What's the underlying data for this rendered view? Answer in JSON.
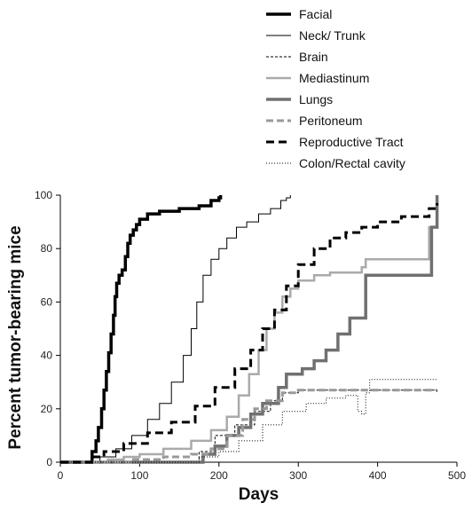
{
  "chart_data": {
    "type": "line",
    "title": "",
    "xlabel": "Days",
    "ylabel": "Percent tumor-bearing mice",
    "xlim": [
      0,
      500
    ],
    "ylim": [
      0,
      100
    ],
    "xticks": [
      0,
      100,
      200,
      300,
      400,
      500
    ],
    "yticks": [
      0,
      20,
      40,
      60,
      80,
      100
    ],
    "grid": false,
    "legend_position": "top",
    "series": [
      {
        "name": "Facial",
        "style": {
          "color": "#000000",
          "width": 3.5,
          "dash": ""
        },
        "points": [
          [
            0,
            0
          ],
          [
            38,
            0
          ],
          [
            40,
            4
          ],
          [
            45,
            8
          ],
          [
            48,
            13
          ],
          [
            52,
            20
          ],
          [
            55,
            27
          ],
          [
            58,
            34
          ],
          [
            61,
            41
          ],
          [
            64,
            48
          ],
          [
            67,
            55
          ],
          [
            69,
            62
          ],
          [
            71,
            67
          ],
          [
            74,
            70
          ],
          [
            78,
            72
          ],
          [
            82,
            77
          ],
          [
            85,
            82
          ],
          [
            88,
            85
          ],
          [
            92,
            87
          ],
          [
            96,
            89
          ],
          [
            100,
            91
          ],
          [
            110,
            93
          ],
          [
            125,
            94
          ],
          [
            140,
            94
          ],
          [
            150,
            95
          ],
          [
            175,
            96
          ],
          [
            190,
            98
          ],
          [
            200,
            99
          ],
          [
            202,
            100
          ]
        ]
      },
      {
        "name": "Neck/ Trunk",
        "style": {
          "color": "#000000",
          "width": 1,
          "dash": ""
        },
        "points": [
          [
            0,
            0
          ],
          [
            45,
            0
          ],
          [
            50,
            2
          ],
          [
            70,
            5
          ],
          [
            90,
            10
          ],
          [
            110,
            16
          ],
          [
            125,
            22
          ],
          [
            140,
            30
          ],
          [
            155,
            40
          ],
          [
            165,
            50
          ],
          [
            172,
            60
          ],
          [
            180,
            70
          ],
          [
            190,
            76
          ],
          [
            200,
            80
          ],
          [
            210,
            84
          ],
          [
            222,
            88
          ],
          [
            235,
            90
          ],
          [
            250,
            93
          ],
          [
            265,
            95
          ],
          [
            278,
            98
          ],
          [
            285,
            99
          ],
          [
            290,
            100
          ]
        ]
      },
      {
        "name": "Brain",
        "style": {
          "color": "#000000",
          "width": 1,
          "dash": "3,2"
        },
        "points": [
          [
            0,
            0
          ],
          [
            160,
            0
          ],
          [
            175,
            4
          ],
          [
            195,
            10
          ],
          [
            220,
            14
          ],
          [
            245,
            19
          ],
          [
            265,
            23
          ],
          [
            280,
            26
          ],
          [
            300,
            27
          ],
          [
            350,
            27
          ],
          [
            475,
            26
          ]
        ]
      },
      {
        "name": "Mediastinum",
        "style": {
          "color": "#aaaaaa",
          "width": 2.5,
          "dash": ""
        },
        "points": [
          [
            0,
            0
          ],
          [
            50,
            0
          ],
          [
            60,
            1
          ],
          [
            80,
            2
          ],
          [
            100,
            3
          ],
          [
            130,
            5
          ],
          [
            165,
            8
          ],
          [
            190,
            12
          ],
          [
            210,
            17
          ],
          [
            225,
            25
          ],
          [
            238,
            33
          ],
          [
            250,
            42
          ],
          [
            260,
            50
          ],
          [
            270,
            56
          ],
          [
            280,
            62
          ],
          [
            290,
            65
          ],
          [
            300,
            68
          ],
          [
            320,
            70
          ],
          [
            340,
            71
          ],
          [
            380,
            73
          ],
          [
            385,
            76
          ],
          [
            460,
            76
          ],
          [
            465,
            88
          ],
          [
            475,
            90
          ]
        ]
      },
      {
        "name": "Lungs",
        "style": {
          "color": "#707070",
          "width": 3.5,
          "dash": ""
        },
        "points": [
          [
            0,
            0
          ],
          [
            175,
            0
          ],
          [
            180,
            3
          ],
          [
            195,
            6
          ],
          [
            210,
            10
          ],
          [
            225,
            13
          ],
          [
            240,
            18
          ],
          [
            255,
            22
          ],
          [
            275,
            28
          ],
          [
            285,
            33
          ],
          [
            305,
            35
          ],
          [
            320,
            38
          ],
          [
            335,
            42
          ],
          [
            350,
            48
          ],
          [
            365,
            54
          ],
          [
            385,
            70
          ],
          [
            460,
            70
          ],
          [
            468,
            88
          ],
          [
            475,
            100
          ]
        ]
      },
      {
        "name": "Peritoneum",
        "style": {
          "color": "#999999",
          "width": 3,
          "dash": "8,4"
        },
        "points": [
          [
            0,
            0
          ],
          [
            80,
            0
          ],
          [
            90,
            1
          ],
          [
            130,
            2
          ],
          [
            165,
            3
          ],
          [
            190,
            5
          ],
          [
            210,
            10
          ],
          [
            230,
            16
          ],
          [
            245,
            20
          ],
          [
            260,
            23
          ],
          [
            280,
            26
          ],
          [
            300,
            27
          ],
          [
            350,
            27
          ],
          [
            475,
            27
          ]
        ]
      },
      {
        "name": "Reproductive Tract",
        "style": {
          "color": "#000000",
          "width": 3,
          "dash": "9,5"
        },
        "points": [
          [
            0,
            0
          ],
          [
            40,
            0
          ],
          [
            42,
            2
          ],
          [
            55,
            4
          ],
          [
            80,
            7
          ],
          [
            110,
            11
          ],
          [
            140,
            15
          ],
          [
            170,
            21
          ],
          [
            195,
            28
          ],
          [
            220,
            35
          ],
          [
            240,
            42
          ],
          [
            255,
            50
          ],
          [
            270,
            57
          ],
          [
            285,
            66
          ],
          [
            300,
            74
          ],
          [
            320,
            80
          ],
          [
            340,
            84
          ],
          [
            360,
            86
          ],
          [
            380,
            88
          ],
          [
            400,
            90
          ],
          [
            430,
            92
          ],
          [
            465,
            95
          ],
          [
            475,
            97
          ]
        ]
      },
      {
        "name": "Colon/Rectal cavity",
        "style": {
          "color": "#000000",
          "width": 1,
          "dash": "1,2"
        },
        "points": [
          [
            0,
            0
          ],
          [
            150,
            0
          ],
          [
            175,
            2
          ],
          [
            200,
            4
          ],
          [
            225,
            8
          ],
          [
            255,
            14
          ],
          [
            280,
            19
          ],
          [
            310,
            22
          ],
          [
            335,
            24
          ],
          [
            360,
            25
          ],
          [
            375,
            19
          ],
          [
            380,
            18
          ],
          [
            385,
            26
          ],
          [
            390,
            31
          ],
          [
            475,
            31
          ]
        ]
      }
    ]
  }
}
